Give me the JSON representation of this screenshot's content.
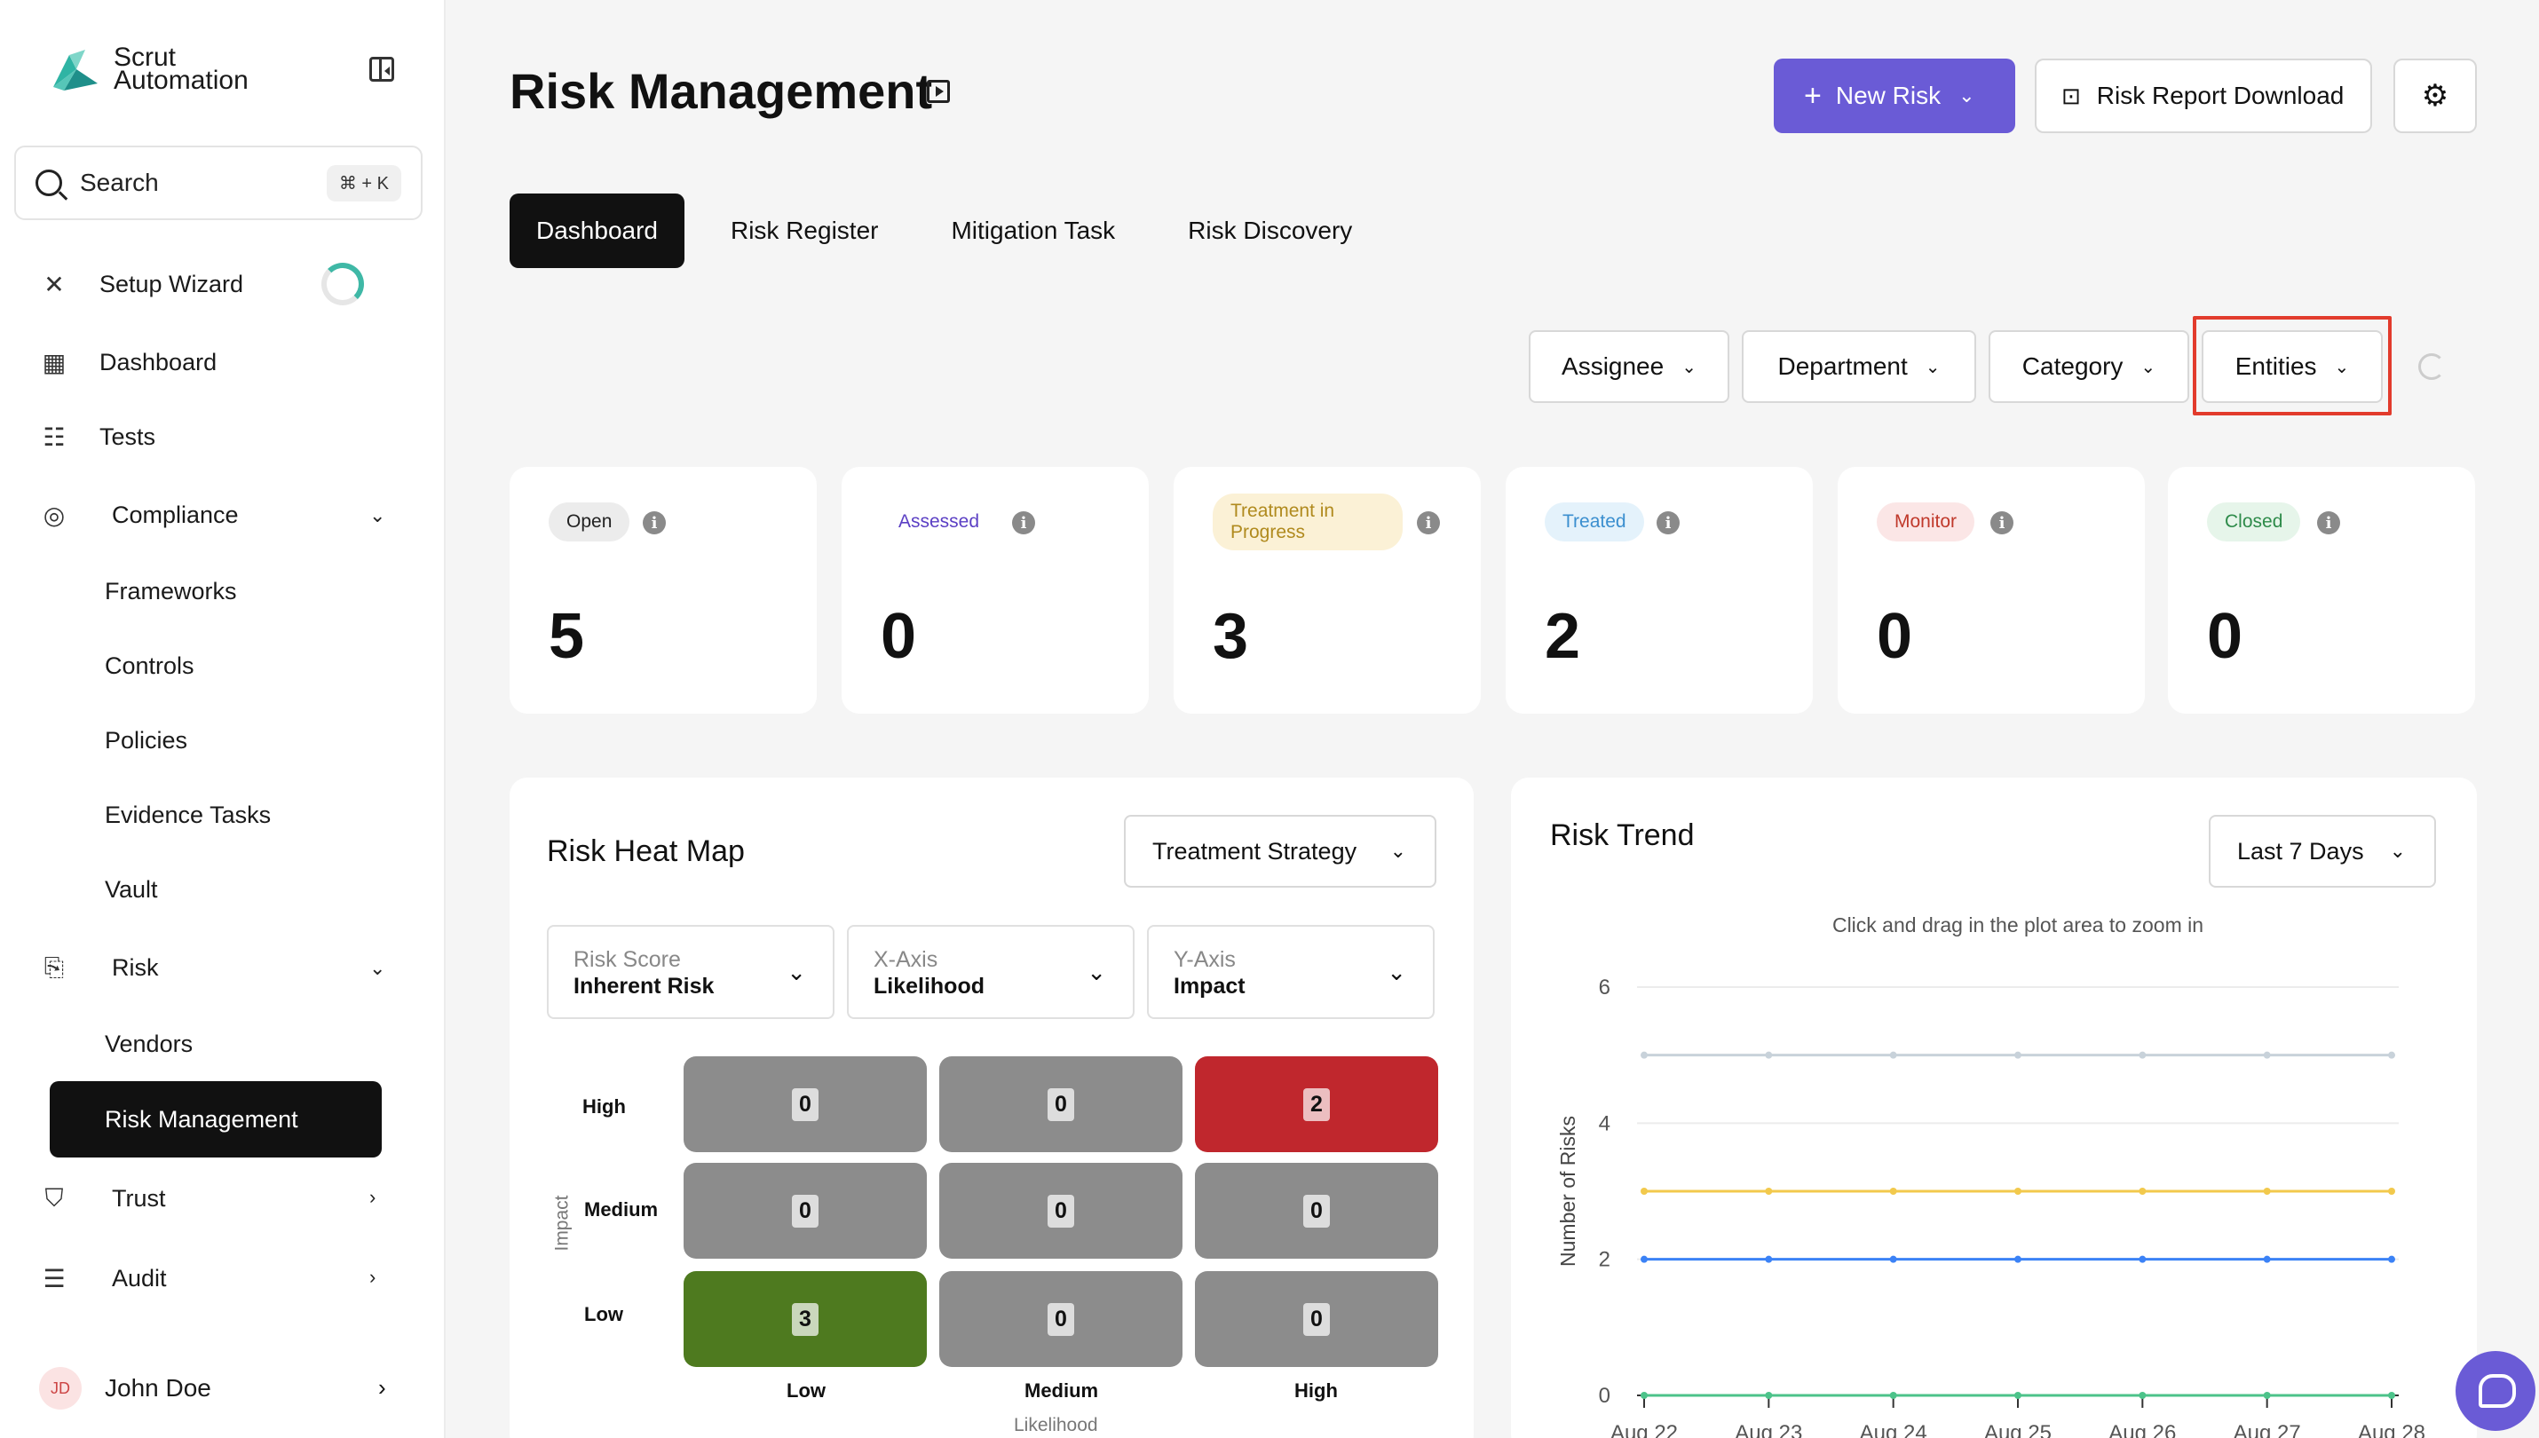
{
  "sidebar": {
    "logo_line1": "Scrut",
    "logo_line2": "Automation",
    "search_label": "Search",
    "search_shortcut": "⌘ + K",
    "items": {
      "setup_wizard": "Setup Wizard",
      "dashboard": "Dashboard",
      "tests": "Tests",
      "compliance": "Compliance",
      "frameworks": "Frameworks",
      "controls": "Controls",
      "policies": "Policies",
      "evidence_tasks": "Evidence Tasks",
      "vault": "Vault",
      "risk": "Risk",
      "vendors": "Vendors",
      "risk_management": "Risk Management",
      "trust": "Trust",
      "audit": "Audit"
    },
    "user": {
      "initials": "JD",
      "name": "John Doe"
    }
  },
  "header": {
    "title": "Risk Management",
    "new_risk": "New Risk",
    "report_download": "Risk Report Download"
  },
  "tabs": [
    "Dashboard",
    "Risk Register",
    "Mitigation Task",
    "Risk Discovery"
  ],
  "filters": [
    "Assignee",
    "Department",
    "Category",
    "Entities"
  ],
  "stats": [
    {
      "label": "Open",
      "value": "5",
      "bg": "#ececec",
      "fg": "#222222"
    },
    {
      "label": "Assessed",
      "value": "0",
      "bg": "#ffffff",
      "fg": "#5b3fc4"
    },
    {
      "label": "Treatment in Progress",
      "value": "3",
      "bg": "#fbf1d6",
      "fg": "#b08a1e"
    },
    {
      "label": "Treated",
      "value": "2",
      "bg": "#e4f2fb",
      "fg": "#3b8fcf"
    },
    {
      "label": "Monitor",
      "value": "0",
      "bg": "#fbe6e6",
      "fg": "#c0392b"
    },
    {
      "label": "Closed",
      "value": "0",
      "bg": "#e6f5ea",
      "fg": "#2e8b4a"
    }
  ],
  "heatmap": {
    "title": "Risk Heat Map",
    "strategy_label": "Treatment Strategy",
    "selects": [
      {
        "label": "Risk Score",
        "value": "Inherent Risk"
      },
      {
        "label": "X-Axis",
        "value": "Likelihood"
      },
      {
        "label": "Y-Axis",
        "value": "Impact"
      }
    ],
    "y_labels": [
      "High",
      "Medium",
      "Low"
    ],
    "x_labels": [
      "Low",
      "Medium",
      "High"
    ],
    "y_axis_name": "Impact",
    "x_axis_name": "Likelihood",
    "cells": [
      [
        "0",
        "0",
        "2"
      ],
      [
        "0",
        "0",
        "0"
      ],
      [
        "3",
        "0",
        "0"
      ]
    ],
    "colors": {
      "neutral": "#8c8c8c",
      "high": "#c0272d",
      "low": "#4e7a1f"
    }
  },
  "trend": {
    "title": "Risk Trend",
    "range_label": "Last 7 Days",
    "zoom_hint": "Click and drag in the plot area to zoom in"
  },
  "chart_data": {
    "type": "line",
    "title": "Risk Trend",
    "ylabel": "Number of Risks",
    "xlabel": "",
    "x": [
      "Aug 22",
      "Aug 23",
      "Aug 24",
      "Aug 25",
      "Aug 26",
      "Aug 27",
      "Aug 28"
    ],
    "ylim": [
      0,
      6
    ],
    "yticks": [
      0,
      2,
      4,
      6
    ],
    "grid": true,
    "series": [
      {
        "color": "#c8d2da",
        "values": [
          5,
          5,
          5,
          5,
          5,
          5,
          5
        ]
      },
      {
        "color": "#f2c94c",
        "values": [
          3,
          3,
          3,
          3,
          3,
          3,
          3
        ]
      },
      {
        "color": "#3b82f6",
        "values": [
          2,
          2,
          2,
          2,
          2,
          2,
          2
        ]
      },
      {
        "color": "#4cc38a",
        "values": [
          0,
          0,
          0,
          0,
          0,
          0,
          0
        ]
      }
    ]
  }
}
